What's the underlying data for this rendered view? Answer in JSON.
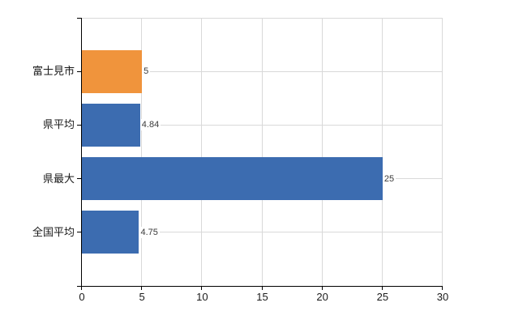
{
  "chart_data": {
    "type": "bar",
    "orientation": "horizontal",
    "title": "",
    "categories": [
      "富士見市",
      "県平均",
      "県最大",
      "全国平均"
    ],
    "values": [
      5,
      4.84,
      25,
      4.75
    ],
    "value_labels": [
      "5",
      "4.84",
      "25",
      "4.75"
    ],
    "highlight_index": 0,
    "xlim": [
      0,
      30
    ],
    "x_ticks": [
      "0",
      "5",
      "10",
      "15",
      "20",
      "25",
      "30"
    ],
    "grid": "on",
    "legend": "none",
    "colors": {
      "highlight_bar": "#f0943c",
      "default_bar": "#3c6cb0",
      "gridline": "#d9d9d9",
      "axis": "#000000",
      "tick_label_text": "#1a1a1a",
      "category_label_text": "#1a1a1a",
      "value_label_text": "#3a3a3a",
      "background": "#ffffff"
    }
  }
}
